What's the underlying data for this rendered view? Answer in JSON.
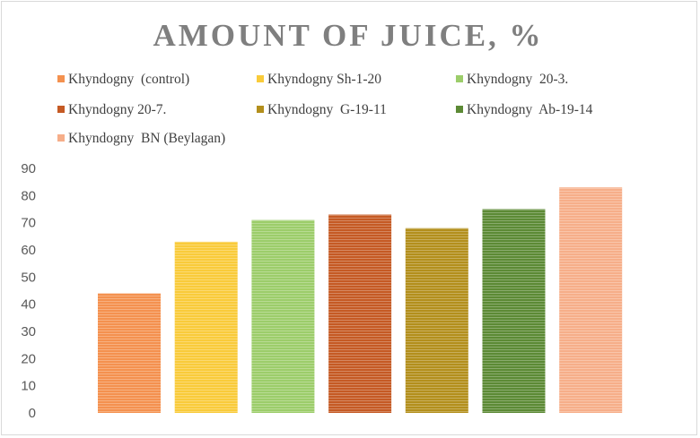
{
  "chart_data": {
    "type": "bar",
    "title": "AMOUNT OF JUICE, %",
    "xlabel": "",
    "ylabel": "",
    "ylim": [
      0,
      90
    ],
    "yticks": [
      0,
      10,
      20,
      30,
      40,
      50,
      60,
      70,
      80,
      90
    ],
    "grid": false,
    "legend_position": "top",
    "categories": [
      "Khyndogny  (control)",
      "Khyndogny Sh-1-20",
      "Khyndogny  20-3.",
      "Khyndogny 20-7.",
      "Khyndogny  G-19-11",
      "Khyndogny  Ab-19-14",
      "Khyndogny  BN (Beylagan)"
    ],
    "values": [
      44,
      63,
      71,
      73,
      68,
      75,
      83
    ],
    "colors": [
      "#f4914f",
      "#f9cb3a",
      "#9ccd6a",
      "#c55a24",
      "#b38f1c",
      "#5c8a35",
      "#f6ae89"
    ]
  }
}
